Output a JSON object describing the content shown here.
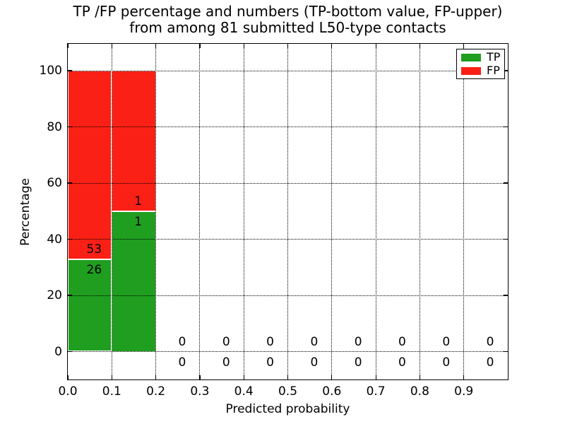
{
  "title": {
    "line1": "TP /FP percentage and numbers (TP-bottom value, FP-upper)",
    "line2": "from among 81 submitted L50-type contacts"
  },
  "axes": {
    "xlabel": "Predicted probability",
    "ylabel": "Percentage"
  },
  "legend": {
    "position": "upper right",
    "items": [
      {
        "label": "TP",
        "color": "#1f9e1f"
      },
      {
        "label": "FP",
        "color": "#fb2015"
      }
    ]
  },
  "colors": {
    "tp_green": "#1f9e1f",
    "fp_red": "#fb2015",
    "grid": "#000000",
    "background": "#ffffff",
    "text": "#000000"
  },
  "chart_data": {
    "type": "bar",
    "stacked": true,
    "title": "TP /FP percentage and numbers (TP-bottom value, FP-upper) from among 81 submitted L50-type contacts",
    "xlabel": "Predicted probability",
    "ylabel": "Percentage",
    "xlim": [
      0.0,
      1.0
    ],
    "ylim": [
      -10,
      110
    ],
    "xticks": [
      "0.0",
      "0.1",
      "0.2",
      "0.3",
      "0.4",
      "0.5",
      "0.6",
      "0.7",
      "0.8",
      "0.9"
    ],
    "yticks": [
      "0",
      "20",
      "40",
      "60",
      "80",
      "100"
    ],
    "grid": "dotted, drawn over bars",
    "legend_position": "upper right",
    "total_submitted": 81,
    "bin_width": 0.1,
    "series": [
      {
        "name": "TP",
        "color": "#1f9e1f",
        "counts": [
          26,
          1,
          0,
          0,
          0,
          0,
          0,
          0,
          0,
          0
        ]
      },
      {
        "name": "FP",
        "color": "#fb2015",
        "counts": [
          53,
          1,
          0,
          0,
          0,
          0,
          0,
          0,
          0,
          0
        ]
      }
    ],
    "bins": [
      {
        "range": [
          0.0,
          0.1
        ],
        "tp": 26,
        "fp": 53,
        "tp_pct": 32.9,
        "fp_pct": 67.1
      },
      {
        "range": [
          0.1,
          0.2
        ],
        "tp": 1,
        "fp": 1,
        "tp_pct": 50.0,
        "fp_pct": 50.0
      },
      {
        "range": [
          0.2,
          0.3
        ],
        "tp": 0,
        "fp": 0,
        "tp_pct": 0,
        "fp_pct": 0
      },
      {
        "range": [
          0.3,
          0.4
        ],
        "tp": 0,
        "fp": 0,
        "tp_pct": 0,
        "fp_pct": 0
      },
      {
        "range": [
          0.4,
          0.5
        ],
        "tp": 0,
        "fp": 0,
        "tp_pct": 0,
        "fp_pct": 0
      },
      {
        "range": [
          0.5,
          0.6
        ],
        "tp": 0,
        "fp": 0,
        "tp_pct": 0,
        "fp_pct": 0
      },
      {
        "range": [
          0.6,
          0.7
        ],
        "tp": 0,
        "fp": 0,
        "tp_pct": 0,
        "fp_pct": 0
      },
      {
        "range": [
          0.7,
          0.8
        ],
        "tp": 0,
        "fp": 0,
        "tp_pct": 0,
        "fp_pct": 0
      },
      {
        "range": [
          0.8,
          0.9
        ],
        "tp": 0,
        "fp": 0,
        "tp_pct": 0,
        "fp_pct": 0
      },
      {
        "range": [
          0.9,
          1.0
        ],
        "tp": 0,
        "fp": 0,
        "tp_pct": 0,
        "fp_pct": 0
      }
    ]
  }
}
